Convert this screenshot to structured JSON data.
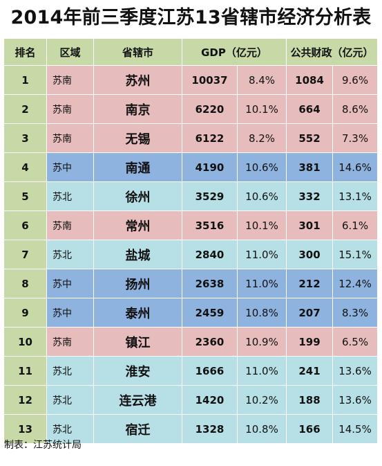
{
  "title": "2014年前三季度江苏13省辖市经济分析表",
  "headers": [
    "排名",
    "区域",
    "省辖市",
    "GDP（亿元）",
    "公共财政（亿元）"
  ],
  "rows": [
    {
      "rank": "1",
      "region": "苏南",
      "city": "苏州",
      "gdp": "10037",
      "gdp_growth": "8.4%",
      "fiscal": "1084",
      "fiscal_growth": "9.6%",
      "area": "south"
    },
    {
      "rank": "2",
      "region": "苏南",
      "city": "南京",
      "gdp": "6220",
      "gdp_growth": "10.1%",
      "fiscal": "664",
      "fiscal_growth": "8.6%",
      "area": "south"
    },
    {
      "rank": "3",
      "region": "苏南",
      "city": "无锡",
      "gdp": "6122",
      "gdp_growth": "8.2%",
      "fiscal": "552",
      "fiscal_growth": "7.3%",
      "area": "south"
    },
    {
      "rank": "4",
      "region": "苏中",
      "city": "南通",
      "gdp": "4190",
      "gdp_growth": "10.6%",
      "fiscal": "381",
      "fiscal_growth": "14.6%",
      "area": "mid"
    },
    {
      "rank": "5",
      "region": "苏北",
      "city": "徐州",
      "gdp": "3529",
      "gdp_growth": "10.6%",
      "fiscal": "332",
      "fiscal_growth": "13.1%",
      "area": "north"
    },
    {
      "rank": "6",
      "region": "苏南",
      "city": "常州",
      "gdp": "3516",
      "gdp_growth": "10.1%",
      "fiscal": "301",
      "fiscal_growth": "6.1%",
      "area": "south"
    },
    {
      "rank": "7",
      "region": "苏北",
      "city": "盐城",
      "gdp": "2840",
      "gdp_growth": "11.0%",
      "fiscal": "300",
      "fiscal_growth": "15.1%",
      "area": "north"
    },
    {
      "rank": "8",
      "region": "苏中",
      "city": "扬州",
      "gdp": "2638",
      "gdp_growth": "11.0%",
      "fiscal": "212",
      "fiscal_growth": "12.4%",
      "area": "mid"
    },
    {
      "rank": "9",
      "region": "苏中",
      "city": "泰州",
      "gdp": "2459",
      "gdp_growth": "10.8%",
      "fiscal": "207",
      "fiscal_growth": "8.3%",
      "area": "mid"
    },
    {
      "rank": "10",
      "region": "苏南",
      "city": "镇江",
      "gdp": "2360",
      "gdp_growth": "10.9%",
      "fiscal": "199",
      "fiscal_growth": "6.5%",
      "area": "south"
    },
    {
      "rank": "11",
      "region": "苏北",
      "city": "淮安",
      "gdp": "1666",
      "gdp_growth": "11.0%",
      "fiscal": "241",
      "fiscal_growth": "13.6%",
      "area": "north"
    },
    {
      "rank": "12",
      "region": "苏北",
      "city": "连云港",
      "gdp": "1420",
      "gdp_growth": "10.2%",
      "fiscal": "188",
      "fiscal_growth": "13.6%",
      "area": "north"
    },
    {
      "rank": "13",
      "region": "苏北",
      "city": "宿迁",
      "gdp": "1328",
      "gdp_growth": "10.8%",
      "fiscal": "166",
      "fiscal_growth": "14.5%",
      "area": "north"
    }
  ],
  "footer": "制表：江苏统计局",
  "colors": {
    "header": "#c6d9a6",
    "south": "#e7bcbc",
    "mid": "#8eb3df",
    "north": "#b6dfe6"
  }
}
